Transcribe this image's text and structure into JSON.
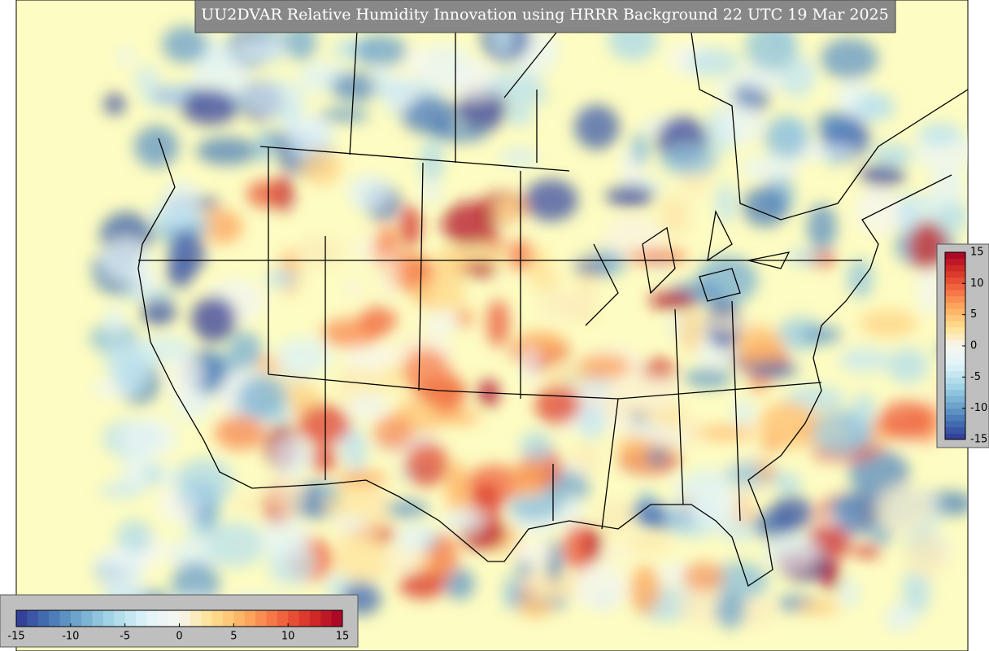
{
  "title": "UU2DVAR Relative Humidity Innovation using HRRR Background 22 UTC 19 Mar 2025",
  "colorbars": [
    {
      "lim": [
        -15,
        15
      ],
      "ticks": [
        -15,
        -10,
        -5,
        0,
        5,
        10,
        15
      ]
    },
    {
      "lim": [
        -15,
        15
      ],
      "ticks": [
        -15,
        -10,
        -5,
        0,
        5,
        10,
        15
      ]
    }
  ]
}
